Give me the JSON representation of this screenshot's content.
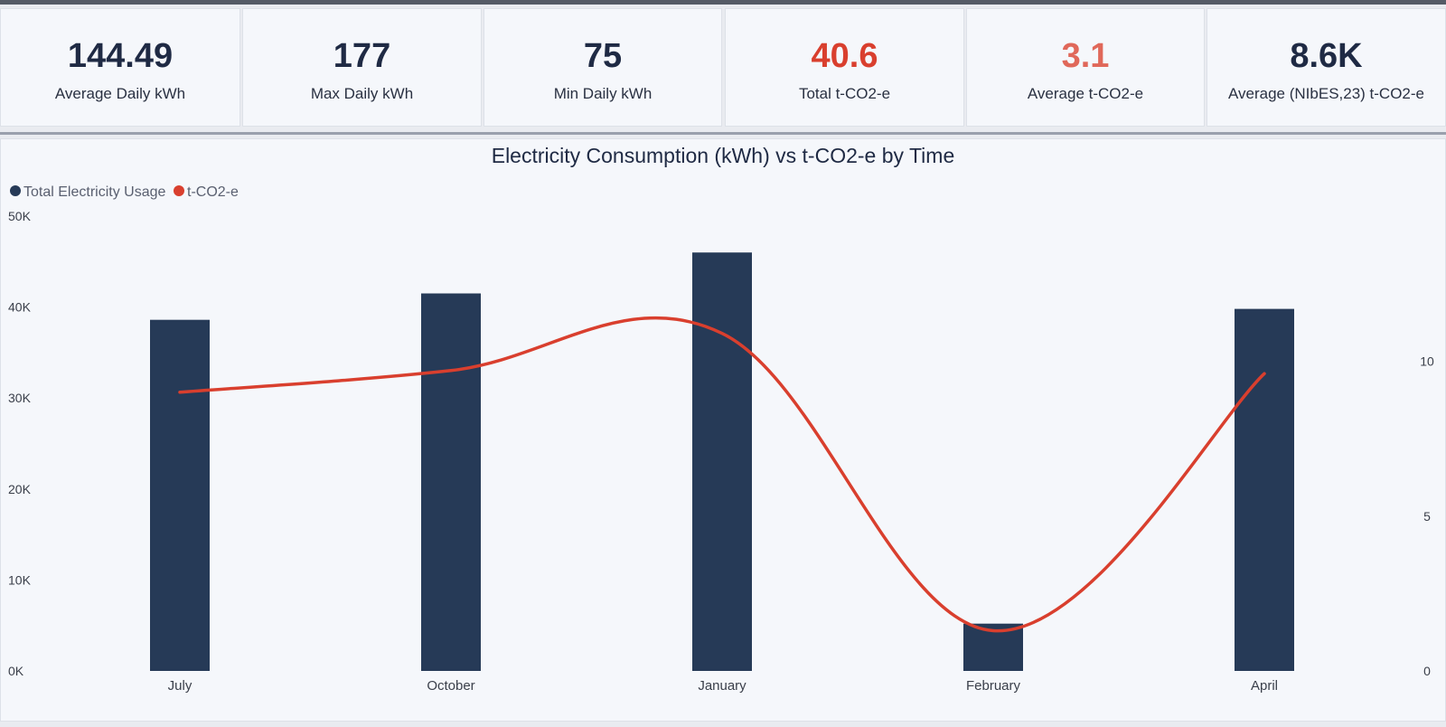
{
  "kpis": [
    {
      "value": "144.49",
      "label": "Average Daily kWh",
      "color": "#1f2a44"
    },
    {
      "value": "177",
      "label": "Max Daily kWh",
      "color": "#1f2a44"
    },
    {
      "value": "75",
      "label": "Min Daily kWh",
      "color": "#1f2a44"
    },
    {
      "value": "40.6",
      "label": "Total t-CO2-e",
      "color": "#d93f2e"
    },
    {
      "value": "3.1",
      "label": "Average t-CO2-e",
      "color": "#e0685a"
    },
    {
      "value": "8.6K",
      "label": "Average (NIbES,23) t-CO2-e",
      "color": "#1f2a44"
    }
  ],
  "chart_data": {
    "type": "bar",
    "title": "Electricity Consumption (kWh) vs t-CO2-e by Time",
    "categories": [
      "July",
      "October",
      "January",
      "February",
      "April"
    ],
    "series": [
      {
        "name": "Total Electricity Usage",
        "type": "bar",
        "axis": "left",
        "color": "#263a57",
        "values": [
          38600,
          41500,
          46000,
          5200,
          39800
        ]
      },
      {
        "name": "t-CO2-e",
        "type": "line",
        "axis": "right",
        "color": "#d93f2e",
        "values": [
          9.0,
          9.7,
          10.9,
          1.3,
          9.6
        ]
      }
    ],
    "y_left": {
      "min": 0,
      "max": 50000,
      "ticks": [
        0,
        10000,
        20000,
        30000,
        40000,
        50000
      ],
      "tick_labels": [
        "0K",
        "10K",
        "20K",
        "30K",
        "40K",
        "50K"
      ]
    },
    "y_right": {
      "min": 0,
      "max": 12,
      "ticks": [
        0,
        5,
        10
      ],
      "tick_labels": [
        "0",
        "5",
        "10"
      ]
    },
    "legend": "top-left",
    "grid": false
  }
}
